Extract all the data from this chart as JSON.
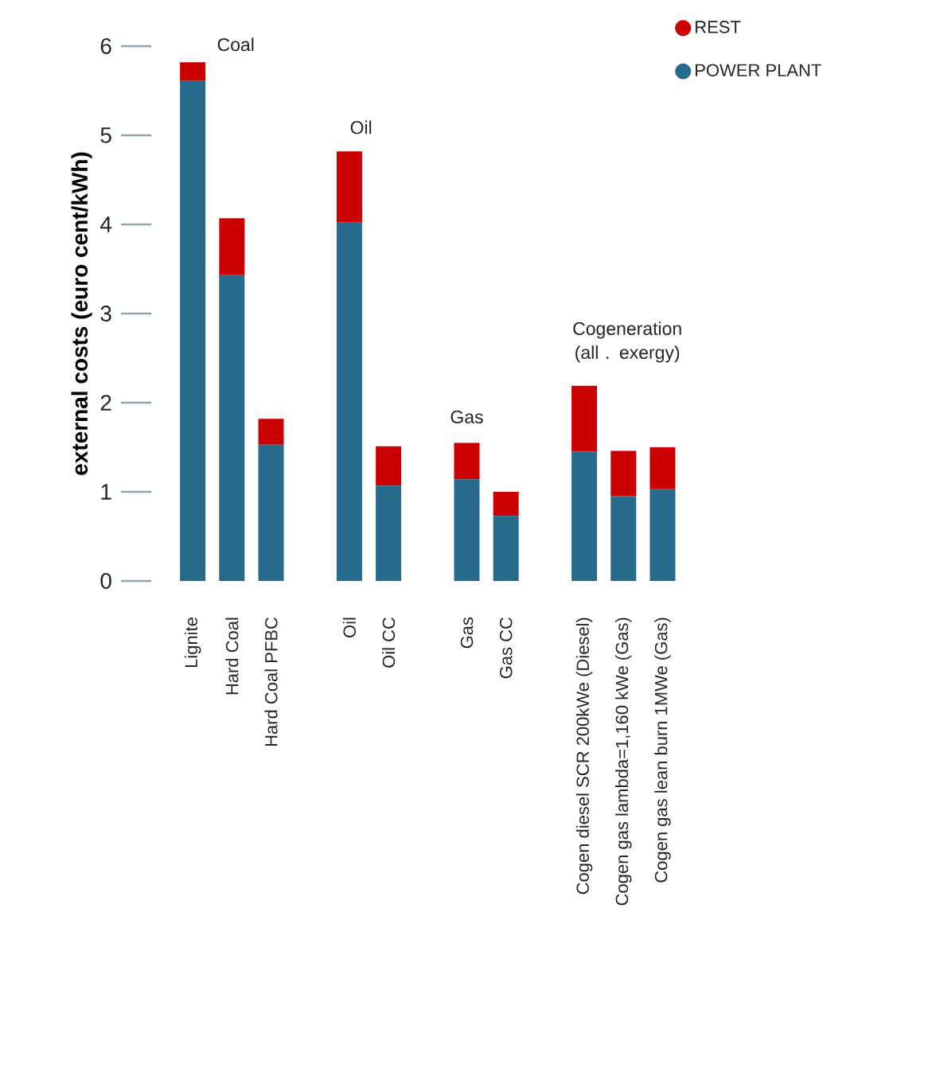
{
  "chart_data": {
    "type": "bar",
    "stacked": true,
    "ylabel": "external costs (euro cent/kWh)",
    "categories": [
      "Lignite",
      "Hard Coal",
      "Hard Coal PFBC",
      null,
      "Oil",
      "Oil CC",
      null,
      "Gas",
      "Gas CC",
      null,
      "Cogen diesel SCR 200kWe (Diesel)",
      "Cogen gas lambda=1,160 kWe (Gas)",
      "Cogen gas lean burn 1MWe (Gas)"
    ],
    "series": [
      {
        "name": "POWER PLANT",
        "color": "#266b8c",
        "values": [
          5.61,
          3.43,
          1.53,
          null,
          4.02,
          1.07,
          null,
          1.14,
          0.73,
          null,
          1.45,
          0.95,
          1.03
        ]
      },
      {
        "name": "REST",
        "color": "#cc0000",
        "values": [
          0.21,
          0.64,
          0.29,
          null,
          0.8,
          0.44,
          null,
          0.41,
          0.27,
          null,
          0.74,
          0.51,
          0.47
        ]
      }
    ],
    "ylim": [
      0,
      6
    ],
    "yticks": [
      0,
      1,
      2,
      3,
      4,
      5,
      6
    ],
    "grid": false,
    "legend": "top right",
    "annotations": [
      "Coal",
      "Oil",
      "Gas",
      "Cogeneration (all . exergy)"
    ]
  }
}
